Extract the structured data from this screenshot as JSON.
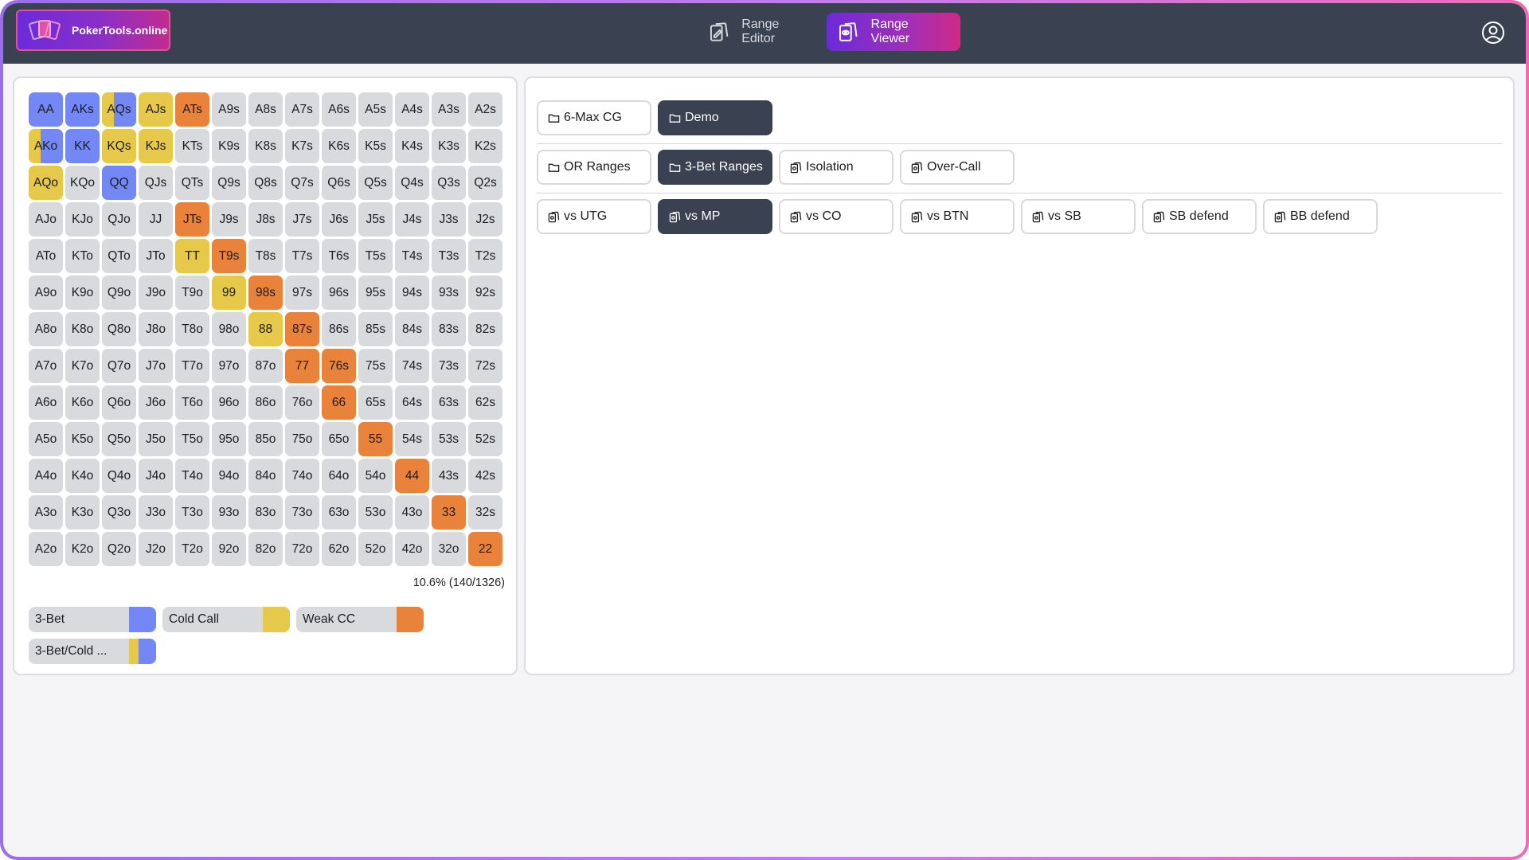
{
  "brand": {
    "name": "PokerTools.online"
  },
  "nav": {
    "range_editor": "Range Editor",
    "range_viewer": "Range Viewer"
  },
  "colors": {
    "three_bet": "#7388f4",
    "cold_call": "#e6c84a",
    "weak_cc": "#e9823a",
    "neutral": "#d8dade",
    "dark": "#3a4150"
  },
  "matrix": [
    [
      "AA",
      "AKs",
      "AQs",
      "AJs",
      "ATs",
      "A9s",
      "A8s",
      "A7s",
      "A6s",
      "A5s",
      "A4s",
      "A3s",
      "A2s"
    ],
    [
      "AKo",
      "KK",
      "KQs",
      "KJs",
      "KTs",
      "K9s",
      "K8s",
      "K7s",
      "K6s",
      "K5s",
      "K4s",
      "K3s",
      "K2s"
    ],
    [
      "AQo",
      "KQo",
      "QQ",
      "QJs",
      "QTs",
      "Q9s",
      "Q8s",
      "Q7s",
      "Q6s",
      "Q5s",
      "Q4s",
      "Q3s",
      "Q2s"
    ],
    [
      "AJo",
      "KJo",
      "QJo",
      "JJ",
      "JTs",
      "J9s",
      "J8s",
      "J7s",
      "J6s",
      "J5s",
      "J4s",
      "J3s",
      "J2s"
    ],
    [
      "ATo",
      "KTo",
      "QTo",
      "JTo",
      "TT",
      "T9s",
      "T8s",
      "T7s",
      "T6s",
      "T5s",
      "T4s",
      "T3s",
      "T2s"
    ],
    [
      "A9o",
      "K9o",
      "Q9o",
      "J9o",
      "T9o",
      "99",
      "98s",
      "97s",
      "96s",
      "95s",
      "94s",
      "93s",
      "92s"
    ],
    [
      "A8o",
      "K8o",
      "Q8o",
      "J8o",
      "T8o",
      "98o",
      "88",
      "87s",
      "86s",
      "85s",
      "84s",
      "83s",
      "82s"
    ],
    [
      "A7o",
      "K7o",
      "Q7o",
      "J7o",
      "T7o",
      "97o",
      "87o",
      "77",
      "76s",
      "75s",
      "74s",
      "73s",
      "72s"
    ],
    [
      "A6o",
      "K6o",
      "Q6o",
      "J6o",
      "T6o",
      "96o",
      "86o",
      "76o",
      "66",
      "65s",
      "64s",
      "63s",
      "62s"
    ],
    [
      "A5o",
      "K5o",
      "Q5o",
      "J5o",
      "T5o",
      "95o",
      "85o",
      "75o",
      "65o",
      "55",
      "54s",
      "53s",
      "52s"
    ],
    [
      "A4o",
      "K4o",
      "Q4o",
      "J4o",
      "T4o",
      "94o",
      "84o",
      "74o",
      "64o",
      "54o",
      "44",
      "43s",
      "42s"
    ],
    [
      "A3o",
      "K3o",
      "Q3o",
      "J3o",
      "T3o",
      "93o",
      "83o",
      "73o",
      "63o",
      "53o",
      "43o",
      "33",
      "32s"
    ],
    [
      "A2o",
      "K2o",
      "Q2o",
      "J2o",
      "T2o",
      "92o",
      "82o",
      "72o",
      "62o",
      "52o",
      "42o",
      "32o",
      "22"
    ]
  ],
  "hand_actions": {
    "AA": {
      "type": "solid",
      "color": "three_bet"
    },
    "AKs": {
      "type": "solid",
      "color": "three_bet"
    },
    "AQs": {
      "type": "split",
      "colors": [
        "cold_call",
        "three_bet"
      ],
      "share": 0.35
    },
    "AJs": {
      "type": "solid",
      "color": "cold_call"
    },
    "ATs": {
      "type": "solid",
      "color": "weak_cc"
    },
    "AKo": {
      "type": "split",
      "colors": [
        "cold_call",
        "three_bet"
      ],
      "share": 0.35
    },
    "KK": {
      "type": "solid",
      "color": "three_bet"
    },
    "KQs": {
      "type": "solid",
      "color": "cold_call"
    },
    "KJs": {
      "type": "solid",
      "color": "cold_call"
    },
    "AQo": {
      "type": "solid",
      "color": "cold_call"
    },
    "QQ": {
      "type": "solid",
      "color": "three_bet"
    },
    "JTs": {
      "type": "solid",
      "color": "weak_cc"
    },
    "TT": {
      "type": "solid",
      "color": "cold_call"
    },
    "T9s": {
      "type": "solid",
      "color": "weak_cc"
    },
    "99": {
      "type": "solid",
      "color": "cold_call"
    },
    "98s": {
      "type": "solid",
      "color": "weak_cc"
    },
    "88": {
      "type": "solid",
      "color": "cold_call"
    },
    "87s": {
      "type": "solid",
      "color": "weak_cc"
    },
    "77": {
      "type": "solid",
      "color": "weak_cc"
    },
    "76s": {
      "type": "solid",
      "color": "weak_cc"
    },
    "66": {
      "type": "solid",
      "color": "weak_cc"
    },
    "55": {
      "type": "solid",
      "color": "weak_cc"
    },
    "44": {
      "type": "solid",
      "color": "weak_cc"
    },
    "33": {
      "type": "solid",
      "color": "weak_cc"
    },
    "22": {
      "type": "solid",
      "color": "weak_cc"
    }
  },
  "stats": {
    "text": "10.6% (140/1326)"
  },
  "legend": [
    {
      "label": "3-Bet",
      "colors": [
        "three_bet"
      ]
    },
    {
      "label": "Cold Call",
      "colors": [
        "cold_call"
      ]
    },
    {
      "label": "Weak CC",
      "colors": [
        "weak_cc"
      ]
    },
    {
      "label": "3-Bet/Cold ...",
      "colors": [
        "cold_call",
        "three_bet"
      ]
    }
  ],
  "folders": {
    "row1": [
      {
        "label": "6-Max CG",
        "icon": "folder-icon",
        "active": false
      },
      {
        "label": "Demo",
        "icon": "folder-icon",
        "active": true
      }
    ],
    "row2": [
      {
        "label": "OR Ranges",
        "icon": "folder-icon",
        "active": false
      },
      {
        "label": "3-Bet Ranges",
        "icon": "folder-icon",
        "active": true
      },
      {
        "label": "Isolation",
        "icon": "range-icon",
        "active": false
      },
      {
        "label": "Over-Call",
        "icon": "range-icon",
        "active": false
      }
    ],
    "row3": [
      {
        "label": "vs UTG",
        "icon": "range-icon",
        "active": false
      },
      {
        "label": "vs MP",
        "icon": "range-icon",
        "active": true
      },
      {
        "label": "vs CO",
        "icon": "range-icon",
        "active": false
      },
      {
        "label": "vs BTN",
        "icon": "range-icon",
        "active": false
      },
      {
        "label": "vs SB",
        "icon": "range-icon",
        "active": false
      },
      {
        "label": "SB defend",
        "icon": "range-icon",
        "active": false
      },
      {
        "label": "BB defend",
        "icon": "range-icon",
        "active": false
      }
    ]
  }
}
